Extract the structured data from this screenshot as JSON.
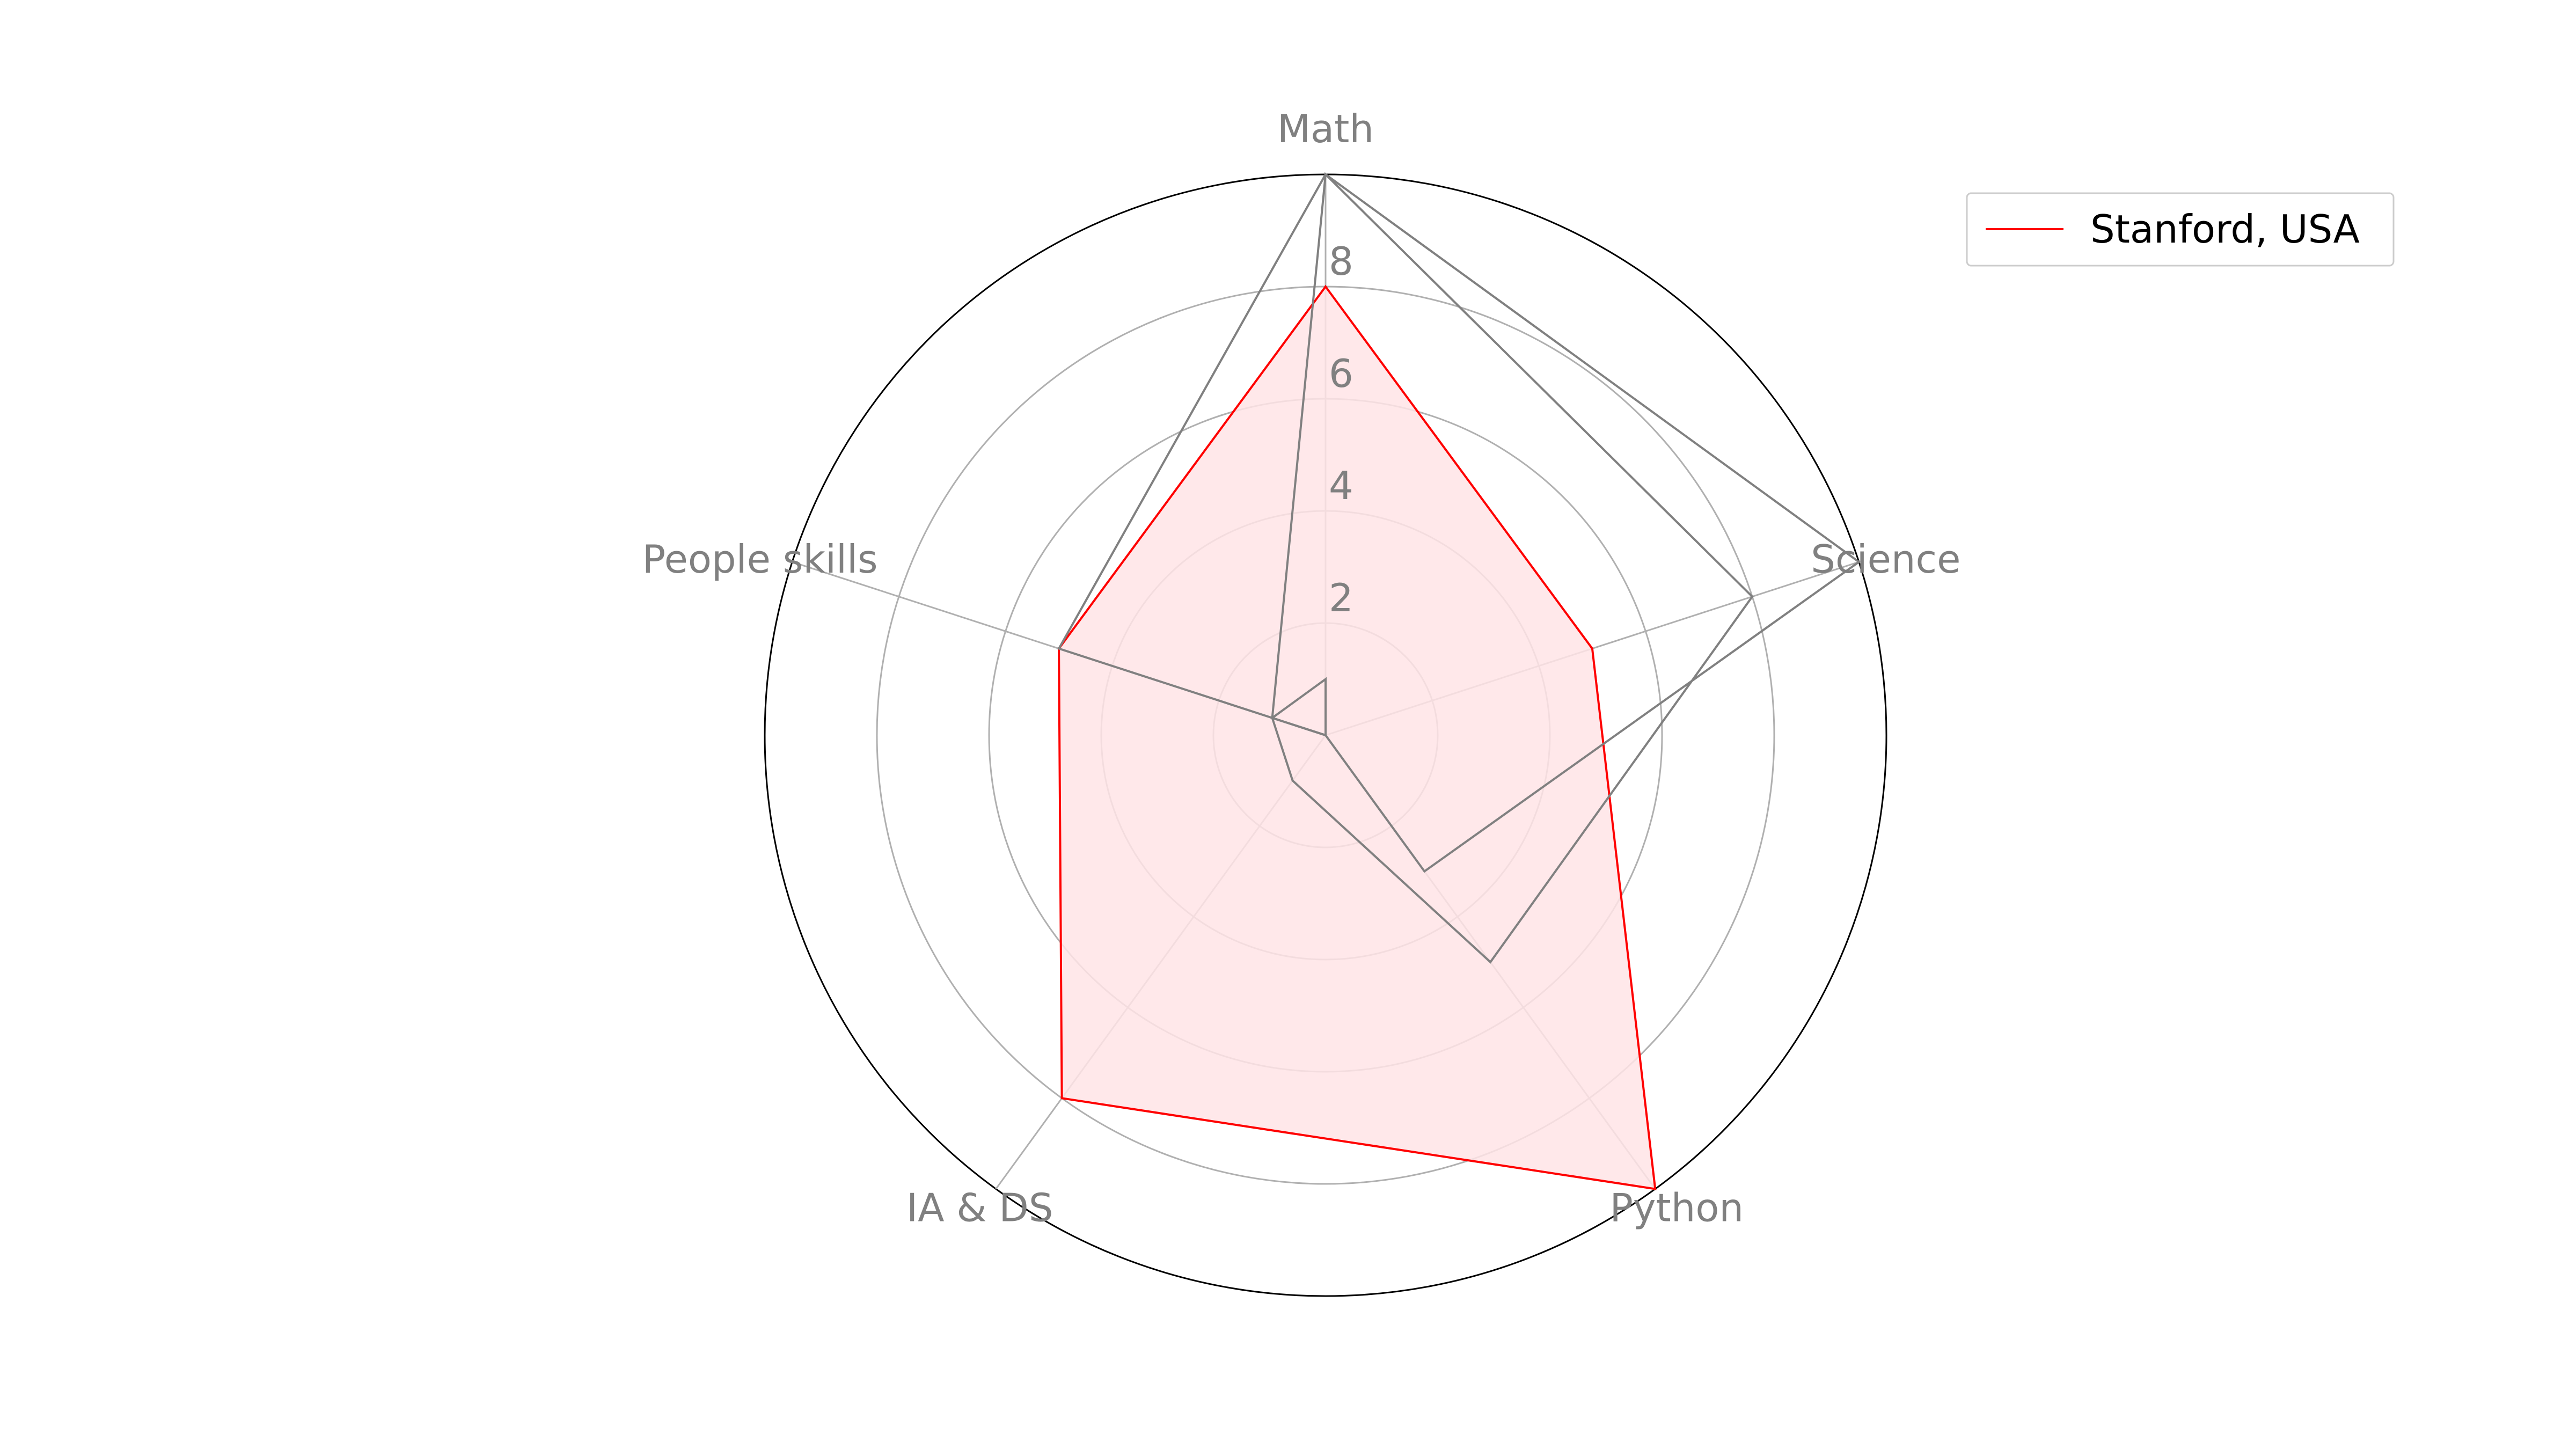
{
  "chart_data": {
    "type": "radar",
    "axes": [
      "Math",
      "Science",
      "Python",
      "IA & DS",
      "People skills"
    ],
    "rlim": [
      0,
      10
    ],
    "rticks": [
      2,
      4,
      6,
      8
    ],
    "rtick_labels": [
      "2",
      "4",
      "6",
      "8"
    ],
    "grid": true,
    "legend_position": "top-right",
    "series": [
      {
        "name": "Stanford, USA",
        "values": [
          8,
          5,
          10,
          8,
          5
        ],
        "color": "#ff0000",
        "fill": "#ffe4e6"
      }
    ],
    "outline_series": [
      {
        "values": [
          10,
          8,
          5,
          1,
          1
        ],
        "color": "#808080"
      },
      {
        "values": [
          10,
          10,
          3,
          0,
          5
        ],
        "color": "#808080"
      },
      {
        "values": [
          1,
          0,
          0,
          0,
          1
        ],
        "color": "#808080"
      }
    ]
  }
}
